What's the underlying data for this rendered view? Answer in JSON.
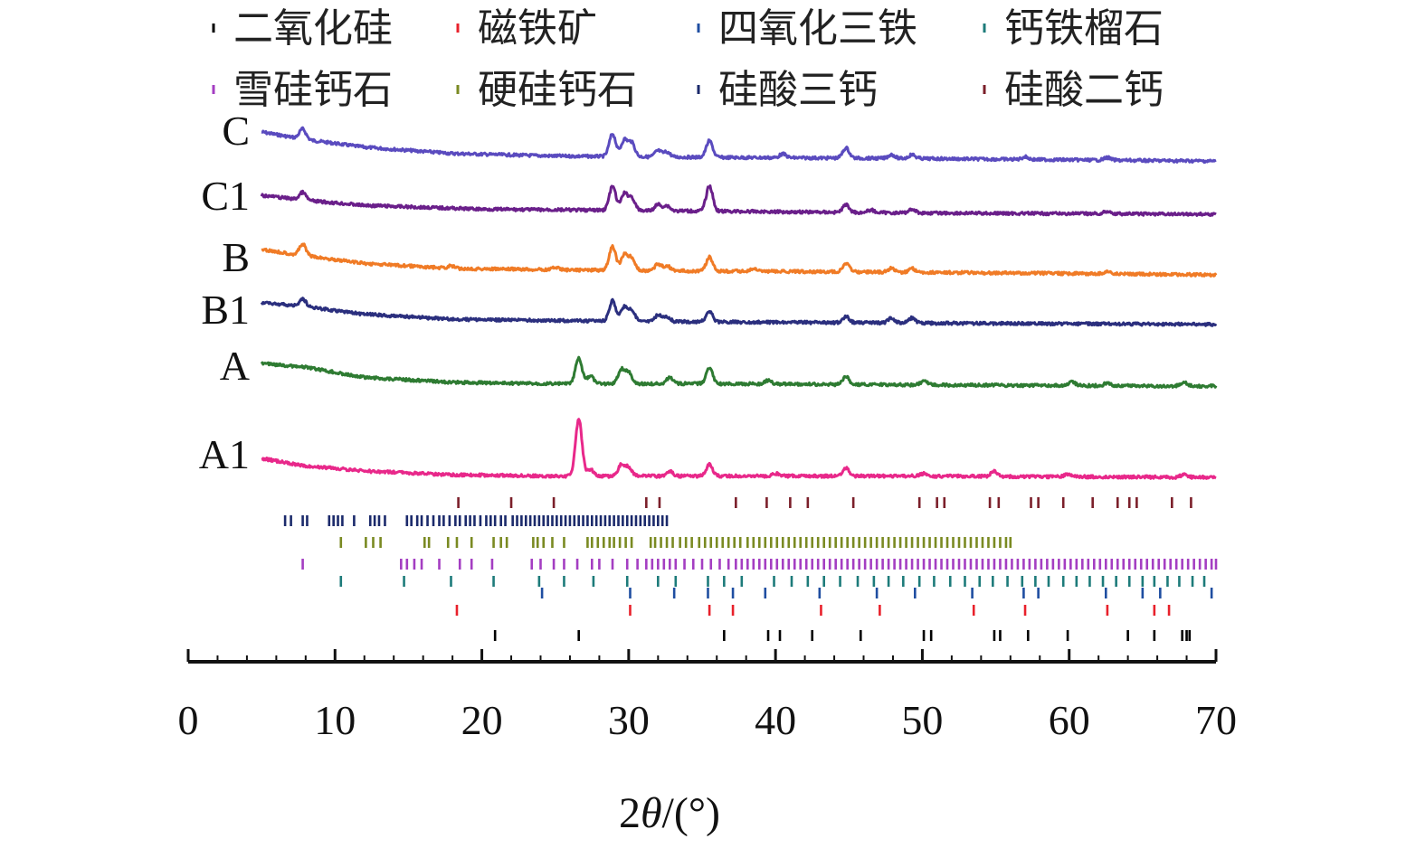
{
  "chart_data": {
    "type": "line",
    "title": "",
    "xlabel_prefix": "2",
    "xlabel_symbol": "θ",
    "xlabel_suffix": "/(°)",
    "ylabel": "",
    "xlim": [
      0,
      70
    ],
    "x_ticks": [
      "0",
      "10",
      "20",
      "30",
      "40",
      "50",
      "60",
      "70"
    ],
    "legend": [
      {
        "label": "二氧化硅",
        "color": "#000000"
      },
      {
        "label": "磁铁矿",
        "color": "#e8212b"
      },
      {
        "label": "四氧化三铁",
        "color": "#1f4ea1"
      },
      {
        "label": "钙铁榴石",
        "color": "#1d7b7a"
      },
      {
        "label": "雪硅钙石",
        "color": "#a43ec2"
      },
      {
        "label": "硬硅钙石",
        "color": "#7a8a22"
      },
      {
        "label": "硅酸三钙",
        "color": "#1b2a6b"
      },
      {
        "label": "硅酸二钙",
        "color": "#7b1f2a"
      }
    ],
    "series": [
      {
        "name": "C",
        "color": "#5a4bbf",
        "x_start": 5,
        "x_end": 70,
        "baseline": [
          [
            5,
            0.0
          ],
          [
            8,
            0.6
          ],
          [
            12,
            1.2
          ],
          [
            18,
            1.7
          ],
          [
            25,
            1.9
          ],
          [
            35,
            2.0
          ],
          [
            50,
            2.1
          ],
          [
            70,
            2.3
          ]
        ],
        "peaks": [
          [
            7.8,
            0.8
          ],
          [
            28.9,
            1.8
          ],
          [
            29.7,
            1.3
          ],
          [
            30.2,
            1.1
          ],
          [
            32.0,
            0.5
          ],
          [
            32.6,
            0.4
          ],
          [
            35.5,
            1.3
          ],
          [
            40.5,
            0.3
          ],
          [
            44.8,
            0.8
          ],
          [
            47.9,
            0.3
          ],
          [
            49.3,
            0.3
          ],
          [
            57.0,
            0.2
          ],
          [
            62.6,
            0.2
          ]
        ]
      },
      {
        "name": "C1",
        "color": "#6a1f8a",
        "x_start": 5,
        "x_end": 70,
        "baseline": [
          [
            5,
            0.0
          ],
          [
            8,
            0.4
          ],
          [
            12,
            0.8
          ],
          [
            20,
            1.1
          ],
          [
            30,
            1.2
          ],
          [
            50,
            1.4
          ],
          [
            70,
            1.5
          ]
        ],
        "peaks": [
          [
            7.8,
            0.6
          ],
          [
            28.9,
            1.9
          ],
          [
            29.7,
            1.3
          ],
          [
            30.2,
            1.0
          ],
          [
            32.0,
            0.5
          ],
          [
            32.6,
            0.4
          ],
          [
            35.5,
            2.0
          ],
          [
            44.8,
            0.6
          ],
          [
            46.5,
            0.2
          ],
          [
            49.3,
            0.3
          ],
          [
            62.6,
            0.2
          ]
        ]
      },
      {
        "name": "B",
        "color": "#f07b26",
        "x_start": 5,
        "x_end": 70,
        "baseline": [
          [
            5,
            0.0
          ],
          [
            8,
            0.5
          ],
          [
            12,
            1.1
          ],
          [
            18,
            1.5
          ],
          [
            25,
            1.6
          ],
          [
            35,
            1.7
          ],
          [
            50,
            1.8
          ],
          [
            70,
            2.0
          ]
        ],
        "peaks": [
          [
            7.8,
            0.9
          ],
          [
            17.9,
            0.2
          ],
          [
            25.0,
            0.2
          ],
          [
            28.9,
            1.9
          ],
          [
            29.7,
            1.2
          ],
          [
            30.2,
            1.0
          ],
          [
            32.0,
            0.5
          ],
          [
            32.6,
            0.4
          ],
          [
            35.5,
            1.1
          ],
          [
            38.5,
            0.2
          ],
          [
            44.8,
            0.7
          ],
          [
            47.9,
            0.3
          ],
          [
            49.3,
            0.3
          ],
          [
            62.6,
            0.2
          ]
        ]
      },
      {
        "name": "B1",
        "color": "#2b2f7e",
        "x_start": 5,
        "x_end": 70,
        "baseline": [
          [
            5,
            0.0
          ],
          [
            8,
            0.3
          ],
          [
            12,
            0.9
          ],
          [
            18,
            1.3
          ],
          [
            25,
            1.4
          ],
          [
            35,
            1.5
          ],
          [
            50,
            1.6
          ],
          [
            70,
            1.7
          ]
        ],
        "peaks": [
          [
            7.8,
            0.6
          ],
          [
            28.9,
            1.6
          ],
          [
            29.7,
            1.1
          ],
          [
            30.2,
            0.9
          ],
          [
            32.0,
            0.5
          ],
          [
            32.6,
            0.4
          ],
          [
            35.5,
            0.8
          ],
          [
            44.8,
            0.5
          ],
          [
            47.9,
            0.4
          ],
          [
            49.3,
            0.4
          ]
        ]
      },
      {
        "name": "A",
        "color": "#2e7b32",
        "x_start": 5,
        "x_end": 70,
        "baseline": [
          [
            5,
            0.0
          ],
          [
            8,
            0.3
          ],
          [
            12,
            1.1
          ],
          [
            18,
            1.5
          ],
          [
            25,
            1.6
          ],
          [
            35,
            1.6
          ],
          [
            50,
            1.7
          ],
          [
            70,
            1.8
          ]
        ],
        "peaks": [
          [
            26.6,
            2.0
          ],
          [
            27.4,
            0.6
          ],
          [
            29.5,
            1.1
          ],
          [
            30.0,
            0.9
          ],
          [
            32.8,
            0.5
          ],
          [
            35.5,
            1.2
          ],
          [
            39.5,
            0.3
          ],
          [
            44.8,
            0.6
          ],
          [
            50.1,
            0.3
          ],
          [
            60.2,
            0.3
          ],
          [
            62.6,
            0.2
          ],
          [
            67.8,
            0.3
          ]
        ]
      },
      {
        "name": "A1",
        "color": "#e8288a",
        "x_start": 5,
        "x_end": 70,
        "baseline": [
          [
            5,
            0.0
          ],
          [
            8,
            0.6
          ],
          [
            12,
            1.0
          ],
          [
            18,
            1.3
          ],
          [
            25,
            1.4
          ],
          [
            35,
            1.4
          ],
          [
            50,
            1.4
          ],
          [
            70,
            1.5
          ]
        ],
        "peaks": [
          [
            26.6,
            4.5
          ],
          [
            27.4,
            0.5
          ],
          [
            29.5,
            0.9
          ],
          [
            30.0,
            0.7
          ],
          [
            32.8,
            0.4
          ],
          [
            35.5,
            0.9
          ],
          [
            40.0,
            0.2
          ],
          [
            44.8,
            0.6
          ],
          [
            50.1,
            0.2
          ],
          [
            54.9,
            0.4
          ],
          [
            59.9,
            0.2
          ],
          [
            67.8,
            0.2
          ]
        ]
      }
    ],
    "reference_ticks": [
      {
        "phase": "硅酸二钙",
        "color": "#7b1f2a",
        "x": [
          18.4,
          22.0,
          24.9,
          31.2,
          32.1,
          37.3,
          39.4,
          41.0,
          42.2,
          45.3,
          49.8,
          51.0,
          51.5,
          54.6,
          55.2,
          57.4,
          57.9,
          59.6,
          61.6,
          63.3,
          64.1,
          64.6,
          67.0,
          68.3
        ]
      },
      {
        "phase": "硅酸三钙",
        "color": "#1b2a6b",
        "x": [
          6.6,
          7.0,
          7.8,
          8.1,
          9.6,
          9.9,
          10.2,
          10.5,
          11.3,
          12.4,
          12.7,
          13.0,
          13.4,
          14.9,
          15.2,
          15.6,
          15.9,
          16.3,
          16.7,
          17.1,
          17.4,
          17.8,
          18.2,
          18.5,
          18.9,
          19.2,
          19.5,
          19.9,
          20.3,
          20.6,
          20.9,
          21.3,
          21.6,
          22.1,
          22.4,
          22.7,
          23.0,
          23.3,
          23.6,
          23.9,
          24.2,
          24.5,
          24.8,
          25.1,
          25.4,
          25.7,
          26.0,
          26.3,
          26.6,
          26.9,
          27.2,
          27.5,
          27.8,
          28.1,
          28.4,
          28.7,
          29.0,
          29.3,
          29.6,
          29.9,
          30.2,
          30.5,
          30.8,
          31.1,
          31.4,
          31.7,
          32.0,
          32.3,
          32.6
        ]
      },
      {
        "phase": "硬硅钙石",
        "color": "#7a8a22",
        "x": [
          10.4,
          12.1,
          12.6,
          13.1,
          16.1,
          16.4,
          17.7,
          18.3,
          19.3,
          20.8,
          21.3,
          21.7,
          23.5,
          23.8,
          24.2,
          24.8,
          25.6,
          27.2,
          27.5,
          27.9,
          28.3,
          28.7,
          29.0,
          29.4,
          29.8,
          30.2,
          31.5,
          31.8,
          32.2,
          32.6,
          33.0,
          33.5,
          33.9,
          34.3,
          34.8,
          35.2,
          35.6,
          36.0,
          36.4,
          36.8,
          37.2,
          37.6,
          38.1,
          38.5,
          38.9,
          39.3,
          39.7,
          40.1,
          40.5,
          40.9,
          41.3,
          41.7,
          42.1,
          42.5,
          42.9,
          43.3,
          43.7,
          44.1,
          44.5,
          44.9,
          45.3,
          45.7,
          46.1,
          46.5,
          46.9,
          47.3,
          47.7,
          48.1,
          48.5,
          48.9,
          49.3,
          49.7,
          50.1,
          50.5,
          50.9,
          51.3,
          51.7,
          52.1,
          52.5,
          52.9,
          53.3,
          53.7,
          54.1,
          54.5,
          54.9,
          55.3,
          55.7,
          56.0
        ]
      },
      {
        "phase": "雪硅钙石",
        "color": "#a43ec2",
        "x": [
          7.8,
          14.5,
          14.9,
          15.4,
          15.9,
          17.1,
          18.5,
          19.3,
          20.7,
          23.4,
          24.0,
          24.9,
          25.6,
          26.5,
          27.5,
          28.0,
          28.9,
          29.9,
          30.6,
          31.2,
          31.6,
          32.0,
          32.4,
          32.8,
          33.2,
          33.8,
          34.4,
          35.0,
          35.6,
          36.2,
          36.8,
          37.3,
          37.7,
          38.1,
          38.5,
          38.9,
          39.3,
          39.7,
          40.1,
          40.5,
          40.9,
          41.3,
          41.7,
          42.1,
          42.5,
          42.9,
          43.3,
          43.7,
          44.1,
          44.5,
          44.9,
          45.3,
          45.7,
          46.1,
          46.5,
          46.9,
          47.3,
          47.7,
          48.1,
          48.5,
          48.9,
          49.3,
          49.7,
          50.1,
          50.5,
          50.9,
          51.3,
          51.7,
          52.1,
          52.5,
          52.9,
          53.3,
          53.7,
          54.1,
          54.5,
          54.9,
          55.3,
          55.7,
          56.1,
          56.5,
          56.9,
          57.3,
          57.7,
          58.1,
          58.5,
          58.9,
          59.3,
          59.7,
          60.1,
          60.5,
          60.9,
          61.3,
          61.7,
          62.1,
          62.5,
          62.9,
          63.3,
          63.7,
          64.1,
          64.5,
          64.9,
          65.3,
          65.7,
          66.1,
          66.5,
          66.9,
          67.3,
          67.7,
          68.1,
          68.5,
          68.9,
          69.3,
          69.7,
          70.0
        ]
      },
      {
        "phase": "钙铁榴石",
        "color": "#1d7b7a",
        "x": [
          10.4,
          14.7,
          17.9,
          20.8,
          23.9,
          25.6,
          27.6,
          29.9,
          32.0,
          33.2,
          35.4,
          36.5,
          37.7,
          39.9,
          41.1,
          42.2,
          43.3,
          44.4,
          45.6,
          46.7,
          47.7,
          48.7,
          49.8,
          50.8,
          51.9,
          52.9,
          53.9,
          54.8,
          55.8,
          56.8,
          57.7,
          58.6,
          59.6,
          60.5,
          61.4,
          62.3,
          63.2,
          64.1,
          65.0,
          65.8,
          66.7,
          67.5,
          68.4,
          69.2
        ]
      },
      {
        "phase": "四氧化三铁",
        "color": "#1f4ea1",
        "x": [
          24.1,
          30.1,
          33.1,
          35.4,
          37.1,
          39.3,
          43.0,
          46.9,
          49.5,
          53.4,
          56.9,
          57.9,
          62.5,
          65.0,
          66.2,
          69.7
        ]
      },
      {
        "phase": "磁铁矿",
        "color": "#e8212b",
        "x": [
          18.3,
          30.1,
          35.5,
          37.1,
          43.1,
          47.1,
          53.5,
          57.0,
          62.6,
          65.8,
          66.8
        ]
      },
      {
        "phase": "二氧化硅",
        "color": "#000000",
        "x": [
          20.9,
          26.6,
          36.5,
          39.5,
          40.3,
          42.5,
          45.8,
          50.1,
          50.6,
          54.9,
          55.3,
          57.2,
          59.9,
          64.0,
          65.8,
          67.7,
          68.0,
          68.2
        ]
      }
    ]
  }
}
